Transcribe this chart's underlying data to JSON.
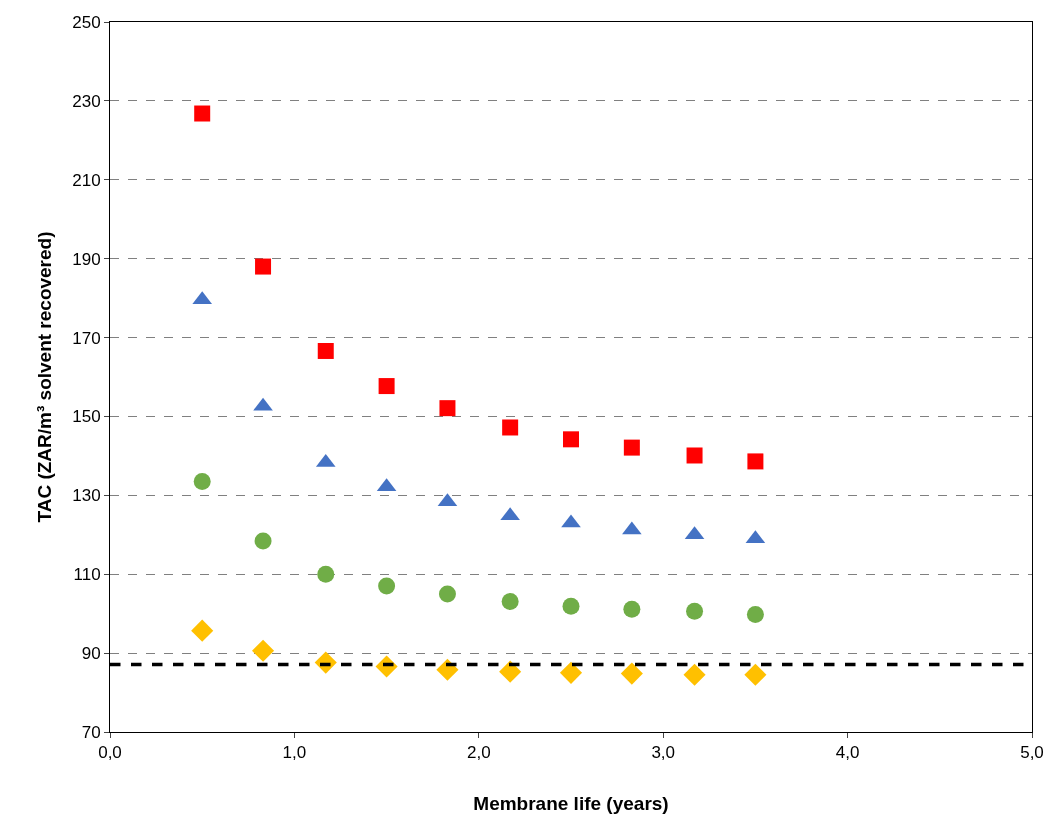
{
  "chart_data": {
    "type": "scatter",
    "xlabel": "Membrane life (years)",
    "ylabel": "TAC (ZAR/m³ solvent recovered)",
    "x": [
      0.5,
      0.83,
      1.17,
      1.5,
      1.83,
      2.17,
      2.5,
      2.83,
      3.17,
      3.5
    ],
    "series": [
      {
        "color": "#ff0000",
        "marker": "square",
        "values": [
          226.8,
          188,
          166.6,
          157.7,
          152.1,
          147.2,
          144.2,
          142.1,
          140.1,
          138.6
        ]
      },
      {
        "color": "#4472c4",
        "marker": "triangle",
        "values": [
          179.6,
          152.6,
          138.3,
          132.2,
          128.4,
          124.8,
          123,
          121.2,
          120,
          119
        ]
      },
      {
        "color": "#70ad47",
        "marker": "circle",
        "values": [
          133.5,
          118.4,
          110,
          107,
          105,
          103.1,
          101.9,
          101.1,
          100.6,
          99.8
        ]
      },
      {
        "color": "#ffc000",
        "marker": "diamond",
        "values": [
          95.7,
          90.6,
          87.6,
          86.6,
          85.8,
          85.3,
          85,
          84.8,
          84.5,
          84.5
        ]
      }
    ],
    "ref_lines": [
      {
        "axis": "y",
        "value": 87.1,
        "color": "#000000",
        "line_style": "dashed"
      }
    ],
    "xlim": [
      0,
      5
    ],
    "xticks": [
      {
        "value": 0,
        "label": "0,0"
      },
      {
        "value": 1,
        "label": "1,0"
      },
      {
        "value": 2,
        "label": "2,0"
      },
      {
        "value": 3,
        "label": "3,0"
      },
      {
        "value": 4,
        "label": "4,0"
      },
      {
        "value": 5,
        "label": "5,0"
      }
    ],
    "ylim": [
      70,
      250
    ],
    "yticks": [
      70,
      90,
      110,
      130,
      150,
      170,
      190,
      210,
      230,
      250
    ],
    "grid": "y"
  }
}
